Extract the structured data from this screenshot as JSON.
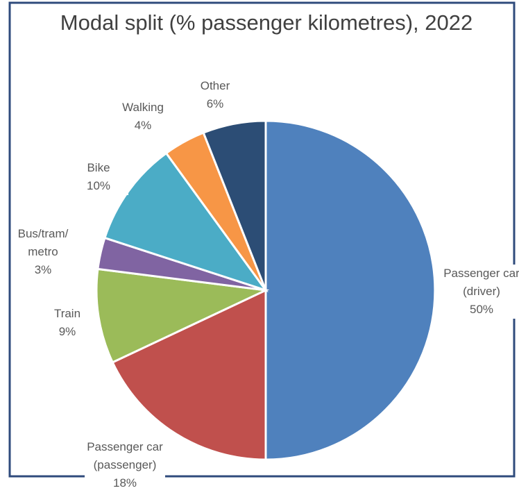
{
  "chart_data": {
    "type": "pie",
    "title": "Modal split (% passenger kilometres), 2022",
    "categories": [
      "Passenger car (driver)",
      "Passenger car (passenger)",
      "Train",
      "Bus/tram/metro",
      "Bike",
      "Walking",
      "Other"
    ],
    "values": [
      50,
      18,
      9,
      3,
      10,
      4,
      6
    ],
    "value_labels": [
      "50%",
      "18%",
      "9%",
      "3%",
      "10%",
      "4%",
      "6%"
    ],
    "colors": [
      "#4f81bd",
      "#c0504d",
      "#9bbb59",
      "#8064a2",
      "#4bacc6",
      "#f79646",
      "#2c4d75"
    ]
  }
}
